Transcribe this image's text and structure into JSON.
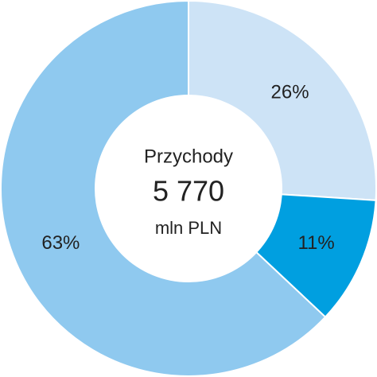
{
  "chart_data": {
    "type": "donut",
    "center_title": "Przychody",
    "center_value": "5 770",
    "center_unit": "mln PLN",
    "values": [
      26,
      11,
      63
    ],
    "value_labels": [
      "26%",
      "11%",
      "63%"
    ],
    "colors": [
      "#cde3f6",
      "#009fe0",
      "#8fc9ef"
    ]
  }
}
